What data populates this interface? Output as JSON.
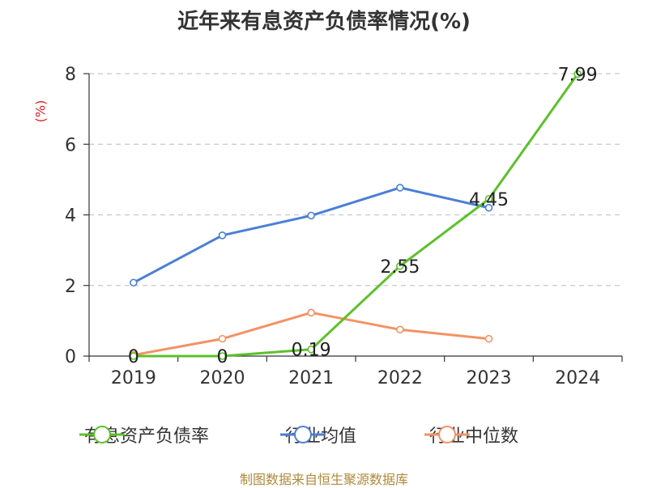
{
  "title": "近年来有息资产负债率情况(%)",
  "unit_label": "(%)",
  "footer": "制图数据来自恒生聚源数据库",
  "chart_data": {
    "type": "line",
    "title": "近年来有息资产负债率情况(%)",
    "ylabel": "(%)",
    "categories": [
      "2019",
      "2020",
      "2021",
      "2022",
      "2023",
      "2024"
    ],
    "ylim": [
      0,
      8
    ],
    "yticks": [
      0,
      2,
      4,
      6,
      8
    ],
    "grid": true,
    "legend_position": "bottom",
    "series": [
      {
        "name": "有息资产负债率",
        "color": "#5cc12b",
        "values": [
          0,
          0,
          0.19,
          2.55,
          4.45,
          7.99
        ],
        "labels": [
          "0",
          "0",
          "0.19",
          "2.55",
          "4.45",
          "7.99"
        ]
      },
      {
        "name": "行业均值",
        "color": "#4a7fd6",
        "values": [
          2.08,
          3.42,
          3.98,
          4.77,
          4.2,
          null
        ]
      },
      {
        "name": "行业中位数",
        "color": "#f39264",
        "values": [
          0.03,
          0.49,
          1.23,
          0.75,
          0.49,
          null
        ]
      }
    ]
  }
}
